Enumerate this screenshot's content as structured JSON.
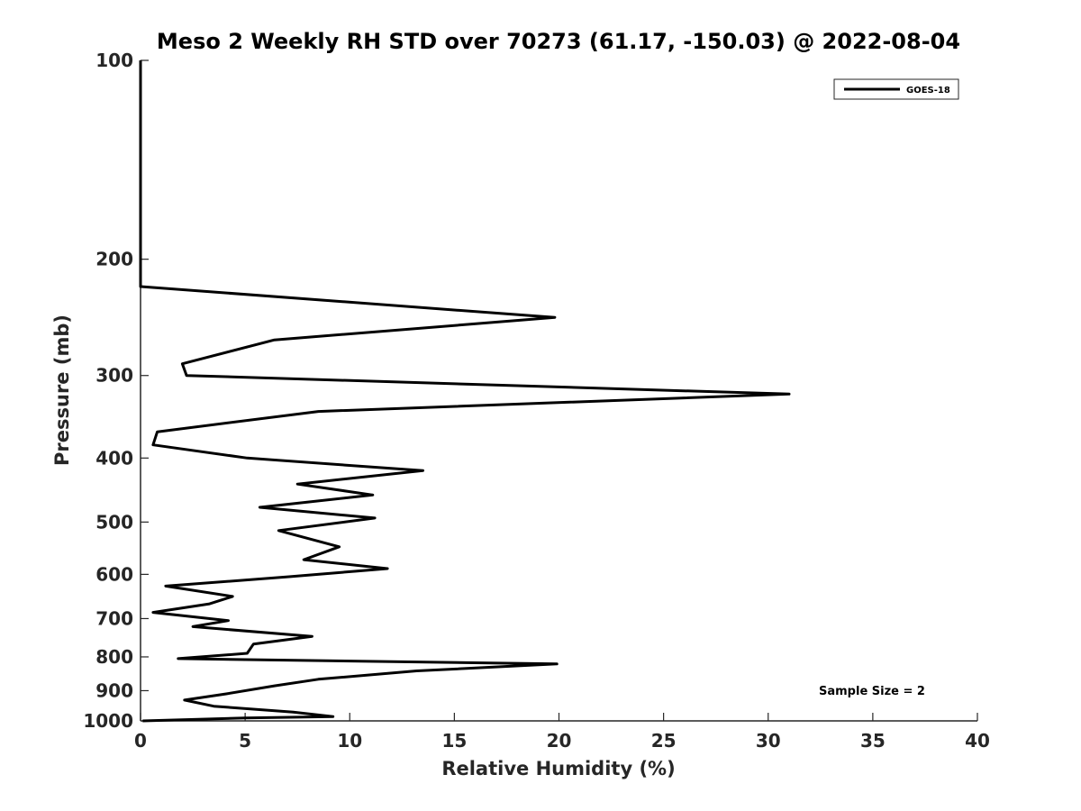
{
  "chart_data": {
    "type": "line",
    "title": "Meso 2 Weekly RH STD over 70273 (61.17, -150.03) @ 2022-08-04",
    "xlabel": "Relative Humidity (%)",
    "ylabel": "Pressure (mb)",
    "xlim": [
      0,
      40
    ],
    "ylim": [
      100,
      1000
    ],
    "yscale": "log",
    "y_reversed": true,
    "grid": false,
    "legend_position": "top-right",
    "xticks": [
      0,
      5,
      10,
      15,
      20,
      25,
      30,
      35,
      40
    ],
    "xtick_labels": [
      "0",
      "5",
      "10",
      "15",
      "20",
      "25",
      "30",
      "35",
      "40"
    ],
    "yticks": [
      100,
      200,
      300,
      400,
      500,
      600,
      700,
      800,
      900,
      1000
    ],
    "ytick_labels": [
      "100",
      "200",
      "300",
      "400",
      "500",
      "600",
      "700",
      "800",
      "900",
      "1000"
    ],
    "series": [
      {
        "name": "GOES-18",
        "color": "#000000",
        "x": [
          0,
          0,
          0,
          19.8,
          6.4,
          2.0,
          2.2,
          31.0,
          8.5,
          0.8,
          0.6,
          5.1,
          13.5,
          7.5,
          11.1,
          5.7,
          11.2,
          6.6,
          9.5,
          7.8,
          11.8,
          7.1,
          1.2,
          4.4,
          3.3,
          0.6,
          4.2,
          2.5,
          8.2,
          5.4,
          5.1,
          1.8,
          19.9,
          13.2,
          8.5,
          6.4,
          4.1,
          2.1,
          3.5,
          7.3,
          9.2,
          5.0,
          0.1
        ],
        "y": [
          100,
          200,
          220,
          245,
          265,
          288,
          300,
          320,
          340,
          365,
          382,
          400,
          418,
          438,
          455,
          475,
          493,
          515,
          545,
          570,
          588,
          605,
          625,
          648,
          665,
          685,
          705,
          720,
          745,
          765,
          790,
          805,
          820,
          840,
          865,
          885,
          910,
          930,
          950,
          970,
          985,
          990,
          1000
        ]
      }
    ],
    "annotations": [
      "Sample Size = 2"
    ]
  }
}
